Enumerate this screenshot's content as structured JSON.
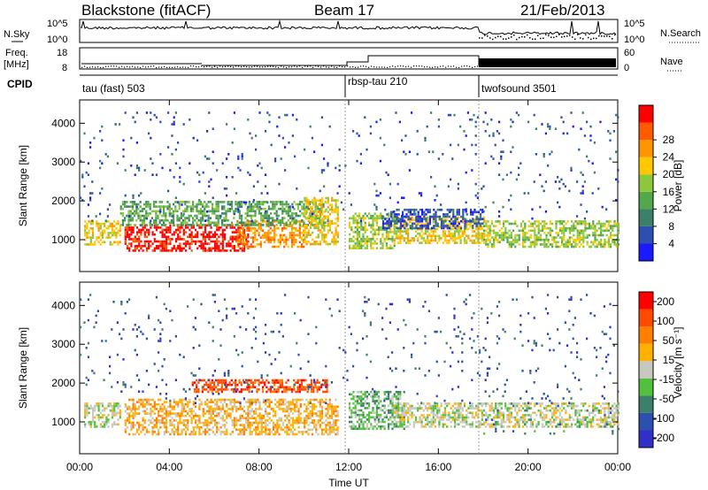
{
  "header": {
    "radar": "Blackstone (fitACF)",
    "beam": "Beam 17",
    "date": "21/Feb/2013"
  },
  "status_panels": {
    "nsky_label": "N.Sky",
    "nsearch_label": "N.Search",
    "nsky_ticks": [
      "10^5",
      "10^0"
    ],
    "nsearch_ticks": [
      "10^5",
      "10^0"
    ],
    "freq_label": [
      "Freq.",
      "[MHz]"
    ],
    "freq_ticks": [
      "18",
      "8"
    ],
    "nave_label": "Nave",
    "nave_ticks": [
      "60",
      "0"
    ],
    "cpid_label": "CPID"
  },
  "cpid_segments": [
    {
      "name": "tau (fast) 503",
      "start_hour": 0
    },
    {
      "name": "rbsp-tau 210",
      "start_hour": 12
    },
    {
      "name": "twofsound 3501",
      "start_hour": 18
    }
  ],
  "chart_data": [
    {
      "type": "heatmap",
      "panel": "power",
      "ylabel": "Slant Range [km]",
      "xlabel": "Time UT",
      "x_ticks": [
        "00:00",
        "04:00",
        "08:00",
        "12:00",
        "16:00",
        "20:00",
        "00:00"
      ],
      "y_ticks": [
        1000,
        2000,
        3000,
        4000
      ],
      "xlim_hours": [
        0,
        24
      ],
      "ylim_km": [
        180,
        4600
      ],
      "colorbar": {
        "label": "Power [dB]",
        "ticks": [
          4,
          8,
          12,
          16,
          20,
          24,
          28
        ],
        "colors": [
          "#1a1aff",
          "#2d4fb0",
          "#3c7f6a",
          "#52a84a",
          "#8cc83c",
          "#ffc800",
          "#ff9600",
          "#ff5a00",
          "#ff0000"
        ]
      },
      "scatter_regions": [
        {
          "t0": 0.2,
          "t1": 1.8,
          "r0": 850,
          "r1": 1500,
          "level": 5
        },
        {
          "t0": 2.0,
          "t1": 7.5,
          "r0": 700,
          "r1": 1400,
          "level": 8
        },
        {
          "t0": 7.0,
          "t1": 10.0,
          "r0": 800,
          "r1": 1500,
          "level": 6
        },
        {
          "t0": 1.8,
          "t1": 11.0,
          "r0": 1400,
          "r1": 2000,
          "level": 3
        },
        {
          "t0": 10.0,
          "t1": 11.5,
          "r0": 900,
          "r1": 2100,
          "level": 5
        },
        {
          "t0": 12.0,
          "t1": 14.0,
          "r0": 800,
          "r1": 1700,
          "level": 4
        },
        {
          "t0": 14.0,
          "t1": 18.0,
          "r0": 900,
          "r1": 1600,
          "level": 5
        },
        {
          "t0": 13.5,
          "t1": 18.0,
          "r0": 1300,
          "r1": 1800,
          "level": 1
        },
        {
          "t0": 18.0,
          "t1": 24.0,
          "r0": 800,
          "r1": 1500,
          "level": 4
        },
        {
          "t0": 0.0,
          "t1": 24.0,
          "r0": 1500,
          "r1": 4300,
          "level": 1,
          "sparse": true
        }
      ]
    },
    {
      "type": "heatmap",
      "panel": "velocity",
      "ylabel": "Slant Range [km]",
      "xlabel": "Time UT",
      "x_ticks": [
        "00:00",
        "04:00",
        "08:00",
        "12:00",
        "16:00",
        "20:00",
        "00:00"
      ],
      "y_ticks": [
        1000,
        2000,
        3000,
        4000
      ],
      "xlim_hours": [
        0,
        24
      ],
      "ylim_km": [
        180,
        4600
      ],
      "colorbar": {
        "label": "Velocity [m s⁻¹]",
        "ticks": [
          200,
          100,
          50,
          15,
          -15,
          -50,
          -100,
          -200
        ],
        "colors": [
          "#3030c8",
          "#2d4fb0",
          "#3c7f6a",
          "#52c03c",
          "#c8c8c0",
          "#ffb000",
          "#ff8000",
          "#ff4a00",
          "#ff0000"
        ]
      },
      "scatter_regions": [
        {
          "t0": 0.2,
          "t1": 1.8,
          "r0": 850,
          "r1": 1500,
          "level": 4
        },
        {
          "t0": 2.0,
          "t1": 11.5,
          "r0": 700,
          "r1": 1600,
          "level": 5
        },
        {
          "t0": 5.0,
          "t1": 11.0,
          "r0": 1800,
          "r1": 2100,
          "level": 7
        },
        {
          "t0": 12.0,
          "t1": 14.5,
          "r0": 800,
          "r1": 1800,
          "level": 3
        },
        {
          "t0": 14.0,
          "t1": 24.0,
          "r0": 900,
          "r1": 1500,
          "level": 4
        },
        {
          "t0": 18.0,
          "t1": 24.0,
          "r0": 700,
          "r1": 1500,
          "level": 2,
          "sparse": true
        },
        {
          "t0": 0.0,
          "t1": 24.0,
          "r0": 1500,
          "r1": 4300,
          "level": 1,
          "sparse": true
        }
      ]
    }
  ]
}
